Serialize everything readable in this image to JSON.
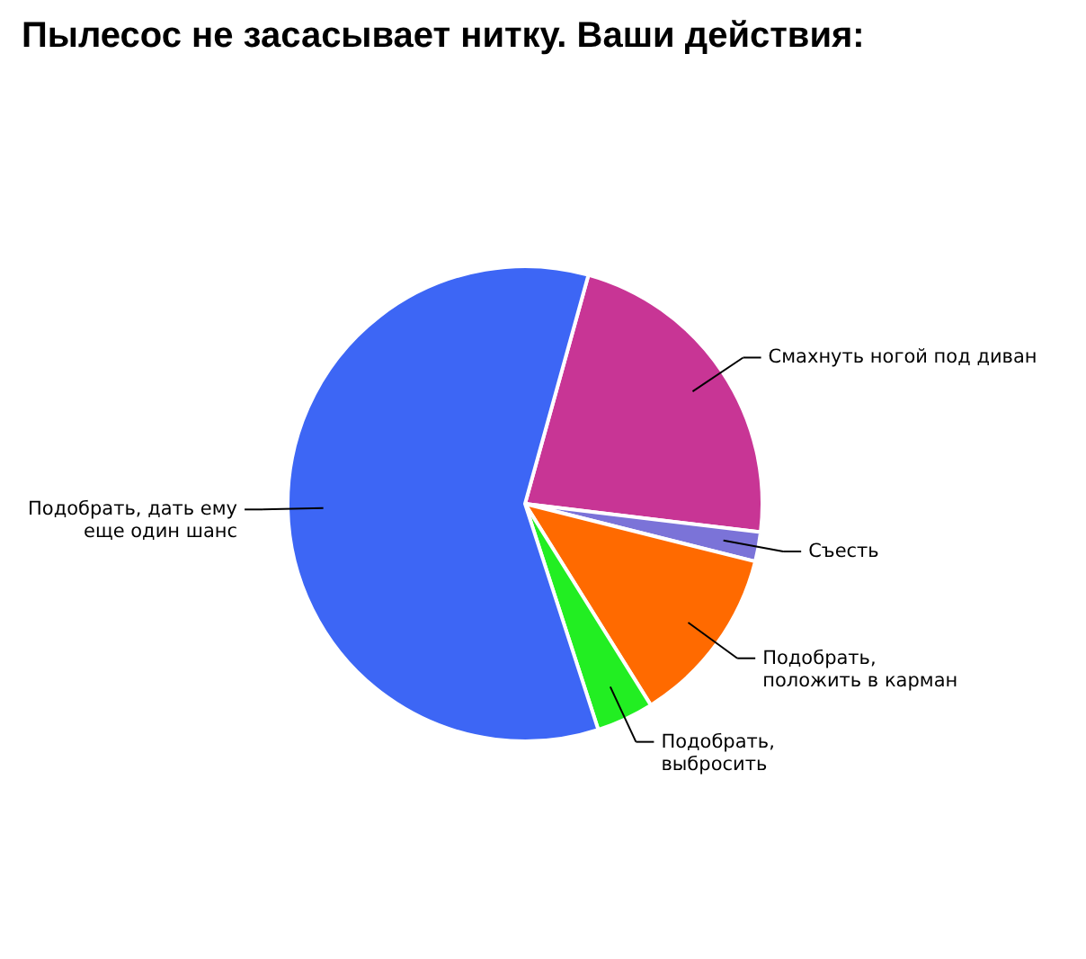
{
  "chart_data": {
    "type": "pie",
    "title": "Пылесос не засасывает нитку. Ваши действия:",
    "categories": [
      "Смахнуть ногой под диван",
      "Съесть",
      "Подобрать,\nположить в карман",
      "Подобрать,\nвыбросить",
      "Подобрать, дать ему\nеще один шанс"
    ],
    "values": [
      22.6,
      2,
      12.2,
      3.9,
      59.3
    ],
    "colors": [
      "#c83595",
      "#7b73d8",
      "#ff6a00",
      "#22ee22",
      "#3d66f5"
    ],
    "legend": false
  }
}
